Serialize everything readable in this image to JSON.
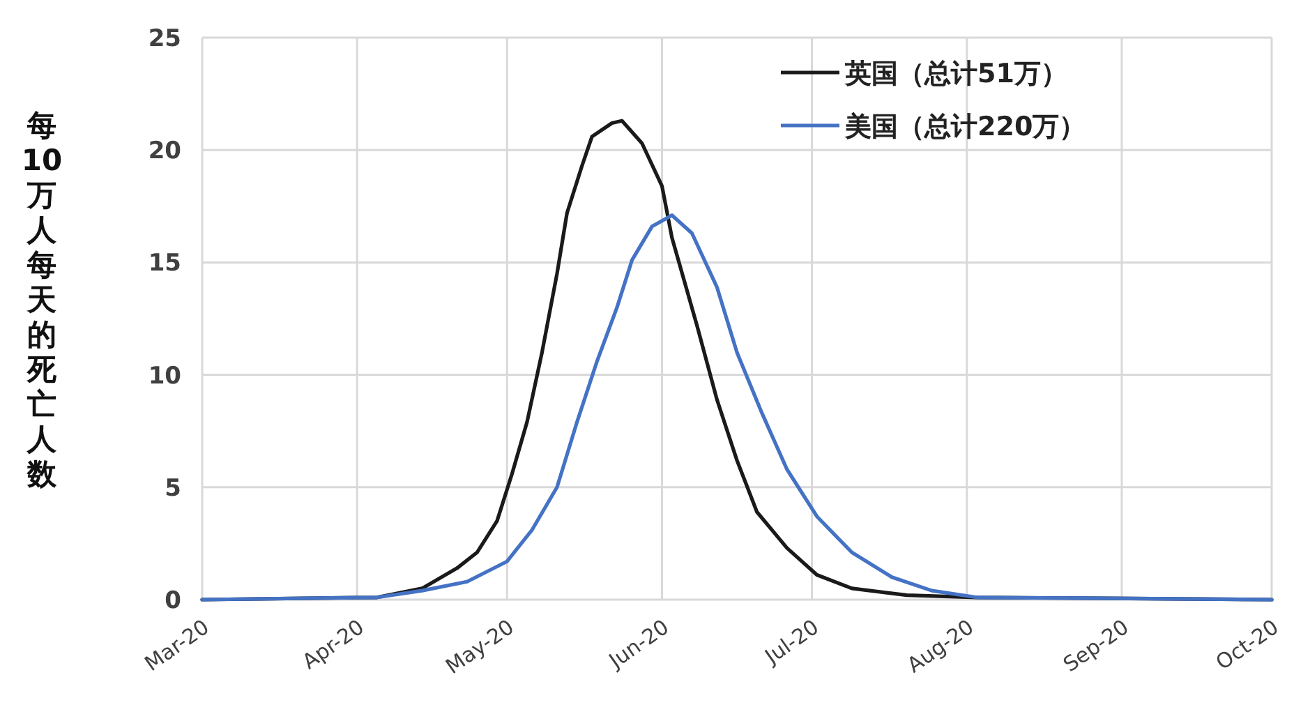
{
  "chart_data": {
    "type": "line",
    "ylabel": "每10万人每天的死亡人数",
    "xlim": [
      "2020-03-01",
      "2020-10-01"
    ],
    "xticks": [
      {
        "value": "2020-03-01",
        "label": "Mar-20"
      },
      {
        "value": "2020-04-01",
        "label": "Apr-20"
      },
      {
        "value": "2020-05-01",
        "label": "May-20"
      },
      {
        "value": "2020-06-01",
        "label": "Jun-20"
      },
      {
        "value": "2020-07-01",
        "label": "Jul-20"
      },
      {
        "value": "2020-08-01",
        "label": "Aug-20"
      },
      {
        "value": "2020-09-01",
        "label": "Sep-20"
      },
      {
        "value": "2020-10-01",
        "label": "Oct-20"
      }
    ],
    "ylim": [
      0,
      25
    ],
    "yticks": [
      0,
      5,
      10,
      15,
      20,
      25
    ],
    "grid": true,
    "legend": "top right",
    "series": [
      {
        "name": "英国（总计51万）",
        "color": "#1a1a1a",
        "x": [
          "2020-03-01",
          "2020-04-05",
          "2020-04-14",
          "2020-04-21",
          "2020-04-25",
          "2020-04-29",
          "2020-05-02",
          "2020-05-05",
          "2020-05-08",
          "2020-05-11",
          "2020-05-13",
          "2020-05-16",
          "2020-05-18",
          "2020-05-22",
          "2020-05-24",
          "2020-05-28",
          "2020-06-01",
          "2020-06-03",
          "2020-06-08",
          "2020-06-12",
          "2020-06-16",
          "2020-06-20",
          "2020-06-26",
          "2020-07-02",
          "2020-07-09",
          "2020-07-20",
          "2020-08-03",
          "2020-10-01"
        ],
        "values": [
          0,
          0.1,
          0.5,
          1.4,
          2.1,
          3.5,
          5.6,
          7.9,
          11,
          14.5,
          17.2,
          19.3,
          20.6,
          21.2,
          21.3,
          20.3,
          18.4,
          16.1,
          12.2,
          8.9,
          6.2,
          3.9,
          2.3,
          1.1,
          0.5,
          0.2,
          0.1,
          0
        ]
      },
      {
        "name": "美国（总计220万）",
        "color": "#4472c4",
        "x": [
          "2020-03-01",
          "2020-04-05",
          "2020-04-14",
          "2020-04-23",
          "2020-05-01",
          "2020-05-06",
          "2020-05-11",
          "2020-05-15",
          "2020-05-19",
          "2020-05-23",
          "2020-05-26",
          "2020-05-30",
          "2020-06-03",
          "2020-06-07",
          "2020-06-12",
          "2020-06-16",
          "2020-06-21",
          "2020-06-26",
          "2020-07-02",
          "2020-07-09",
          "2020-07-17",
          "2020-07-25",
          "2020-08-03",
          "2020-10-01"
        ],
        "values": [
          0,
          0.1,
          0.4,
          0.8,
          1.7,
          3.1,
          5.0,
          7.9,
          10.6,
          13.0,
          15.1,
          16.6,
          17.1,
          16.3,
          13.9,
          11.0,
          8.3,
          5.8,
          3.7,
          2.1,
          1.0,
          0.4,
          0.1,
          0
        ]
      }
    ]
  }
}
